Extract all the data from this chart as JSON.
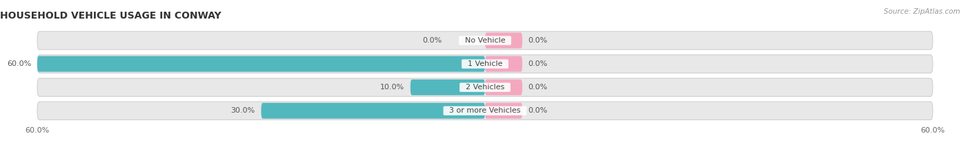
{
  "title": "HOUSEHOLD VEHICLE USAGE IN CONWAY",
  "source": "Source: ZipAtlas.com",
  "categories": [
    "No Vehicle",
    "1 Vehicle",
    "2 Vehicles",
    "3 or more Vehicles"
  ],
  "owner_values": [
    0.0,
    60.0,
    10.0,
    30.0
  ],
  "renter_values": [
    0.0,
    0.0,
    0.0,
    0.0
  ],
  "owner_color": "#52b8be",
  "renter_color": "#f4a8c0",
  "bar_bg_color": "#e8e8e8",
  "bar_border_color": "#d0d0d0",
  "xlim": 60.0,
  "min_renter_bar": 5.0,
  "title_fontsize": 10,
  "source_fontsize": 7.5,
  "label_fontsize": 8,
  "value_fontsize": 8,
  "axis_label_fontsize": 8,
  "figsize": [
    14.06,
    2.33
  ],
  "dpi": 100
}
